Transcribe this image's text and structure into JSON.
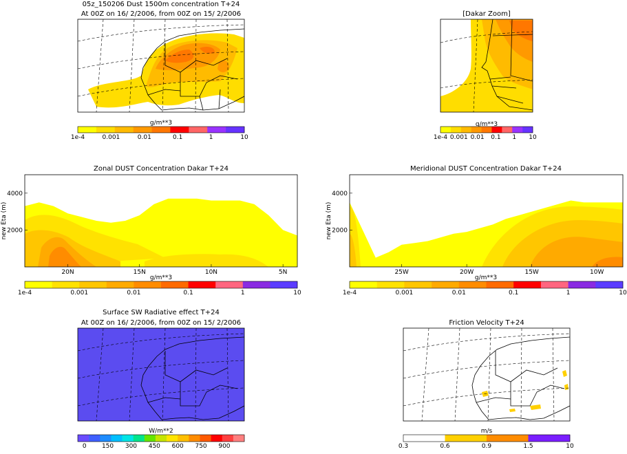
{
  "colors": {
    "dust": [
      "#ffff00",
      "#ffe200",
      "#ffc600",
      "#ffaa00",
      "#ff8c00",
      "#ff6a00",
      "#ff0000",
      "#ff6680",
      "#8a2be2",
      "#5b3cff"
    ],
    "dust_map": [
      "#ffff00",
      "#ffdd00",
      "#ffbb00",
      "#ff9900",
      "#ff7700",
      "#ff0000",
      "#ff6666",
      "#9933ff",
      "#6633ff"
    ],
    "radiative": [
      "#6a4cff",
      "#3f5fff",
      "#1e8cff",
      "#00bfff",
      "#00e5e5",
      "#00e58c",
      "#66e500",
      "#c6e500",
      "#ffe500",
      "#ffbf00",
      "#ff8c00",
      "#ff5a00",
      "#ff0000",
      "#ff4040",
      "#ff7f7f"
    ],
    "friction": [
      "#ffffff",
      "#ffd000",
      "#ff8c00",
      "#7a1eff"
    ],
    "surface_fill": "#5b4cf0",
    "coast": "#000000"
  },
  "panels": {
    "dust_map": {
      "title": "05z_150206 Dust 1500m concentration T+24",
      "subtitle": "At 00Z on 16/ 2/2006, from 00Z on 15/ 2/2006",
      "unit": "g/m**3",
      "ticks": [
        "1e-4",
        "0.001",
        "0.01",
        "0.1",
        "1",
        "10"
      ]
    },
    "dakar_zoom": {
      "title": "[Dakar Zoom]",
      "unit": "g/m**3",
      "ticks": [
        "1e-4",
        "0.001",
        "0.01",
        "0.1",
        "1",
        "10"
      ]
    },
    "zonal": {
      "title": "Zonal DUST Concentration Dakar T+24",
      "ylabel": "new Eta (m)",
      "yticks": [
        "2000",
        "4000"
      ],
      "xticks": [
        "20N",
        "15N",
        "10N",
        "5N"
      ],
      "unit": "g/m**3",
      "ticks": [
        "1e-4",
        "0.001",
        "0.01",
        "0.1",
        "1",
        "10"
      ]
    },
    "meridional": {
      "title": "Meridional DUST Concentration Dakar T+24",
      "ylabel": "new Eta (m)",
      "yticks": [
        "2000",
        "4000"
      ],
      "xticks": [
        "25W",
        "20W",
        "15W",
        "10W"
      ],
      "unit": "g/m**3",
      "ticks": [
        "1e-4",
        "0.001",
        "0.01",
        "0.1",
        "1",
        "10"
      ]
    },
    "radiative": {
      "title": "Surface SW Radiative effect T+24",
      "subtitle": "At 00Z on 16/ 2/2006, from 00Z on 15/ 2/2006",
      "unit": "W/m**2",
      "ticks": [
        "0",
        "150",
        "300",
        "450",
        "600",
        "750",
        "900"
      ]
    },
    "friction": {
      "title": "Friction Velocity T+24",
      "unit": "m/s",
      "ticks": [
        "0.3",
        "0.6",
        "0.9",
        "1.5",
        "10"
      ]
    }
  },
  "chart_data": [
    {
      "type": "heatmap",
      "title": "05z_150206 Dust 1500m concentration T+24",
      "subtitle": "At 00Z on 16/ 2/2006, from 00Z on 15/ 2/2006",
      "colorbar_label": "g/m**3",
      "colorbar_ticks": [
        "1e-4",
        "0.001",
        "0.01",
        "0.1",
        "1",
        "10"
      ],
      "color_scale": "log",
      "color_range": [
        0.0001,
        10
      ]
    },
    {
      "type": "heatmap",
      "title": "[Dakar Zoom]",
      "colorbar_label": "g/m**3",
      "colorbar_ticks": [
        "1e-4",
        "0.001",
        "0.01",
        "0.1",
        "1",
        "10"
      ],
      "color_scale": "log",
      "color_range": [
        0.0001,
        10
      ]
    },
    {
      "type": "area",
      "title": "Zonal DUST Concentration Dakar T+24",
      "ylabel": "new Eta (m)",
      "x_ticks": [
        "20N",
        "15N",
        "10N",
        "5N"
      ],
      "y_ticks": [
        2000,
        4000
      ],
      "ylim": [
        0,
        5000
      ],
      "x_latitude_deg": [
        23,
        22,
        21,
        20,
        19,
        18,
        17,
        16,
        15,
        14,
        13,
        12,
        11,
        10,
        9,
        8,
        7,
        6,
        5,
        4
      ],
      "dust_top_m": [
        3300,
        3500,
        3300,
        2900,
        2700,
        2500,
        2400,
        2500,
        2800,
        3400,
        3700,
        3700,
        3700,
        3600,
        3600,
        3600,
        3400,
        2800,
        2000,
        1700
      ],
      "colorbar_label": "g/m**3",
      "colorbar_ticks": [
        "1e-4",
        "0.001",
        "0.01",
        "0.1",
        "1",
        "10"
      ]
    },
    {
      "type": "area",
      "title": "Meridional DUST Concentration Dakar T+24",
      "ylabel": "new Eta (m)",
      "x_ticks": [
        "25W",
        "20W",
        "15W",
        "10W"
      ],
      "y_ticks": [
        2000,
        4000
      ],
      "ylim": [
        0,
        5000
      ],
      "x_longitude_deg": [
        -29,
        -28,
        -27,
        -26,
        -25,
        -24,
        -23,
        -22,
        -21,
        -20,
        -19,
        -18,
        -17,
        -16,
        -15,
        -14,
        -13,
        -12,
        -11,
        -10,
        -9,
        -8
      ],
      "dust_top_m": [
        3500,
        2000,
        500,
        800,
        1200,
        1300,
        1400,
        1600,
        1800,
        1900,
        2100,
        2300,
        2600,
        2800,
        3000,
        3200,
        3400,
        3600,
        3500,
        3500,
        3500,
        3500
      ],
      "colorbar_label": "g/m**3",
      "colorbar_ticks": [
        "1e-4",
        "0.001",
        "0.01",
        "0.1",
        "1",
        "10"
      ]
    },
    {
      "type": "heatmap",
      "title": "Surface SW Radiative effect T+24",
      "subtitle": "At 00Z on 16/ 2/2006, from 00Z on 15/ 2/2006",
      "colorbar_label": "W/m**2",
      "colorbar_ticks": [
        0,
        150,
        300,
        450,
        600,
        750,
        900
      ]
    },
    {
      "type": "heatmap",
      "title": "Friction Velocity T+24",
      "colorbar_label": "m/s",
      "colorbar_ticks": [
        0.3,
        0.6,
        0.9,
        1.5,
        10
      ]
    }
  ]
}
